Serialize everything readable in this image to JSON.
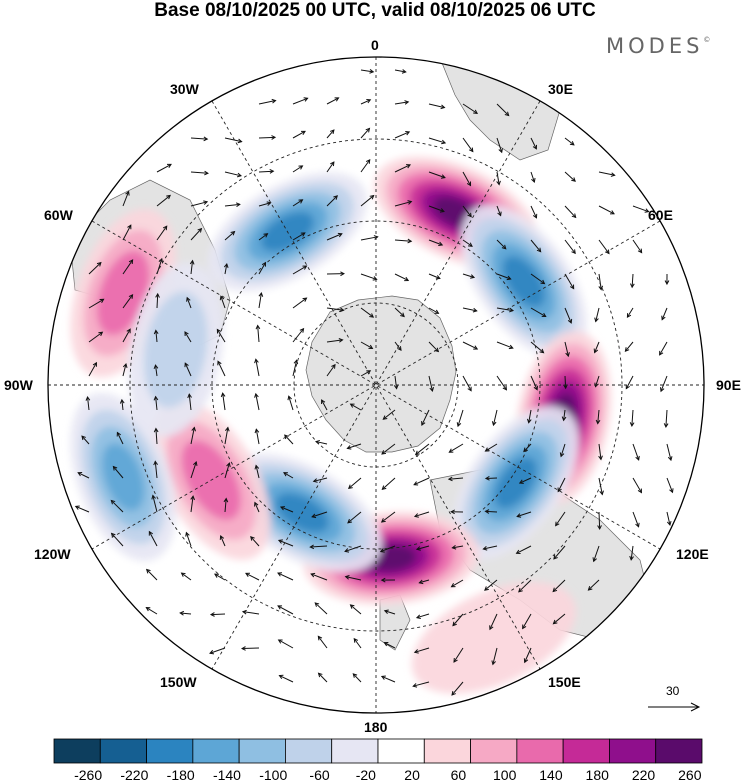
{
  "title": "Base 08/10/2025 00 UTC, valid 08/10/2025 06 UTC",
  "logo": "MODES",
  "logo_mark": "©",
  "longitude_labels": {
    "lon_0": "0",
    "lon_30e": "30E",
    "lon_60e": "60E",
    "lon_90e": "90E",
    "lon_120e": "120E",
    "lon_150e": "150E",
    "lon_180": "180",
    "lon_150w": "150W",
    "lon_120w": "120W",
    "lon_90w": "90W",
    "lon_60w": "60W",
    "lon_30w": "30W"
  },
  "reference_vector": "30",
  "colorbar": {
    "labels": [
      "-260",
      "-220",
      "-180",
      "-140",
      "-100",
      "-60",
      "-20",
      "20",
      "60",
      "100",
      "140",
      "180",
      "220",
      "260"
    ],
    "colors": [
      "#0d3e5e",
      "#155f92",
      "#2b84c0",
      "#5da6d6",
      "#8fbfe2",
      "#bfd2ea",
      "#e6e6f3",
      "#ffffff",
      "#fbd6dc",
      "#f6a9c5",
      "#e96aac",
      "#c52a97",
      "#8f0f8c",
      "#5a0b6b"
    ]
  },
  "anomaly_centers": [
    {
      "lon": 330,
      "r": 0.54,
      "v": -200
    },
    {
      "lon": 25,
      "r": 0.58,
      "v": 260
    },
    {
      "lon": 55,
      "r": 0.55,
      "v": -210
    },
    {
      "lon": 100,
      "r": 0.58,
      "v": 250
    },
    {
      "lon": 125,
      "r": 0.52,
      "v": -220
    },
    {
      "lon": 175,
      "r": 0.53,
      "v": 240
    },
    {
      "lon": 210,
      "r": 0.45,
      "v": -230
    },
    {
      "lon": 240,
      "r": 0.58,
      "v": 140
    },
    {
      "lon": 250,
      "r": 0.82,
      "v": -190
    },
    {
      "lon": 290,
      "r": 0.82,
      "v": 130
    },
    {
      "lon": 280,
      "r": 0.62,
      "v": -90
    },
    {
      "lon": 155,
      "r": 0.85,
      "v": 60
    }
  ]
}
